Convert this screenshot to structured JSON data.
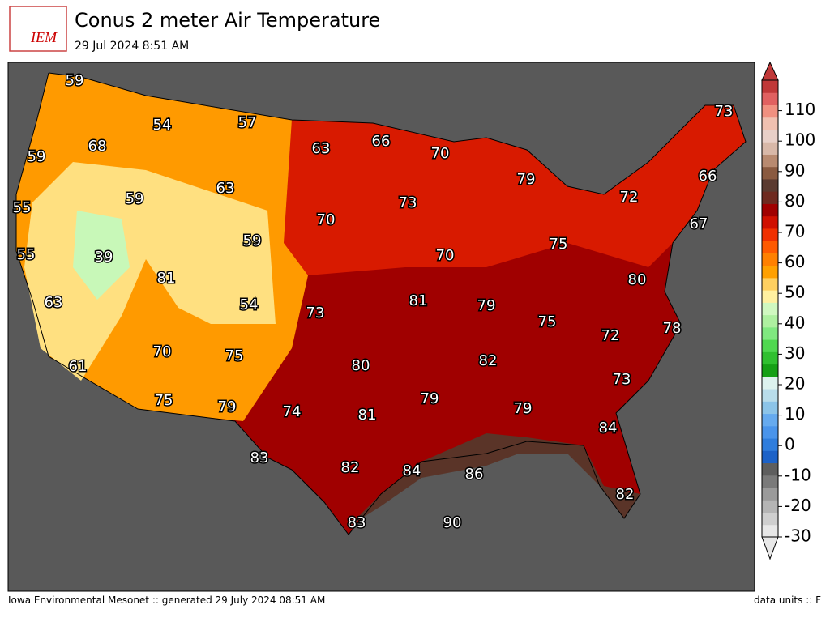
{
  "header": {
    "logo": "IEM",
    "title": "Conus 2 meter Air Temperature",
    "subtitle": "29 Jul 2024 8:51 AM"
  },
  "map": {
    "temperature_labels": [
      59,
      54,
      57,
      63,
      66,
      70,
      73,
      68,
      59,
      79,
      63,
      59,
      73,
      72,
      66,
      55,
      70,
      67,
      59,
      75,
      55,
      39,
      70,
      81,
      80,
      63,
      54,
      81,
      79,
      73,
      75,
      78,
      72,
      70,
      75,
      82,
      61,
      80,
      73,
      75,
      79,
      79,
      74,
      81,
      79,
      84,
      83,
      82,
      84,
      86,
      82,
      83,
      90
    ]
  },
  "colorbar": {
    "ylim": [
      -30,
      120
    ],
    "yticks": [
      -30,
      -20,
      -10,
      0,
      10,
      20,
      30,
      40,
      50,
      60,
      70,
      80,
      90,
      100,
      110
    ],
    "colors": [
      "#e8e8e8",
      "#cfcfcf",
      "#b5b5b5",
      "#9a9a9a",
      "#7a7a7a",
      "#5e5e5e",
      "#1c62c8",
      "#2f7ddc",
      "#4a94ea",
      "#66aaee",
      "#8cc4e8",
      "#b8dcea",
      "#ddf2ee",
      "#16a016",
      "#30c030",
      "#50d850",
      "#80e880",
      "#aef0a0",
      "#d0f8c0",
      "#fff0a0",
      "#ffd060",
      "#ffa000",
      "#ff8000",
      "#ff5a00",
      "#f03000",
      "#d01000",
      "#a00000",
      "#6e2a20",
      "#5a3a30",
      "#8a5a40",
      "#b88a70",
      "#d8b8a8",
      "#e8d0c8",
      "#f0c0b0",
      "#f09080",
      "#e06060",
      "#c03838"
    ]
  },
  "footer": {
    "left": "Iowa Environmental Mesonet :: generated 29 July 2024 08:51 AM",
    "right": "data units :: F"
  }
}
